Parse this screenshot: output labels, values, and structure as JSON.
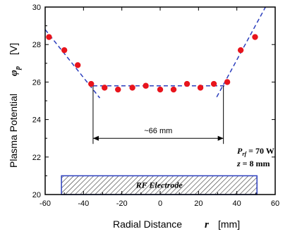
{
  "chart_data": {
    "type": "scatter",
    "xlabel": "Radial Distance",
    "xlabel_symbol": "r",
    "xlabel_unit": "[mm]",
    "ylabel": "Plasma Potential",
    "ylabel_symbol": "φ",
    "ylabel_symbol_sub": "p",
    "ylabel_unit": "[V]",
    "xlim": [
      -60,
      60
    ],
    "ylim": [
      20,
      30
    ],
    "x_ticks": [
      -60,
      -40,
      -20,
      0,
      20,
      40,
      60
    ],
    "y_ticks": [
      20,
      22,
      24,
      26,
      28,
      30
    ],
    "grid": false,
    "marker_color": "#e8141c",
    "series": [
      {
        "x": [
          -58,
          -50,
          -43,
          -36,
          -29,
          -22,
          -14.5,
          -7.5,
          0,
          7,
          14,
          21,
          28,
          35,
          42,
          49.5
        ],
        "values": [
          28.4,
          27.7,
          26.9,
          25.9,
          25.7,
          25.6,
          25.7,
          25.8,
          25.6,
          25.6,
          25.9,
          25.7,
          25.9,
          26.0,
          27.7,
          28.4
        ]
      }
    ],
    "fit_color": "#2b3ebd",
    "fit_lines": [
      {
        "x": [
          -60,
          -31.5
        ],
        "values": [
          28.8,
          25.15
        ]
      },
      {
        "x": [
          -35,
          34.5
        ],
        "values": [
          25.8,
          25.8
        ]
      },
      {
        "x": [
          29.5,
          56
        ],
        "values": [
          25.2,
          30.2
        ]
      }
    ],
    "width_marker": {
      "x_from": -35,
      "x_to": 33,
      "y": 23.0,
      "label": "~66 mm"
    },
    "electrode": {
      "x_from": -51.5,
      "x_to": 50.5,
      "y_from": 20,
      "y_to": 21.0,
      "label": "RF Electrode",
      "color": "#2b3ebd"
    },
    "conditions": [
      {
        "symbol": "P",
        "sub": "rf",
        "text": " = 70 W"
      },
      {
        "symbol": "z",
        "sub": "",
        "text": " = 8 mm"
      }
    ]
  }
}
